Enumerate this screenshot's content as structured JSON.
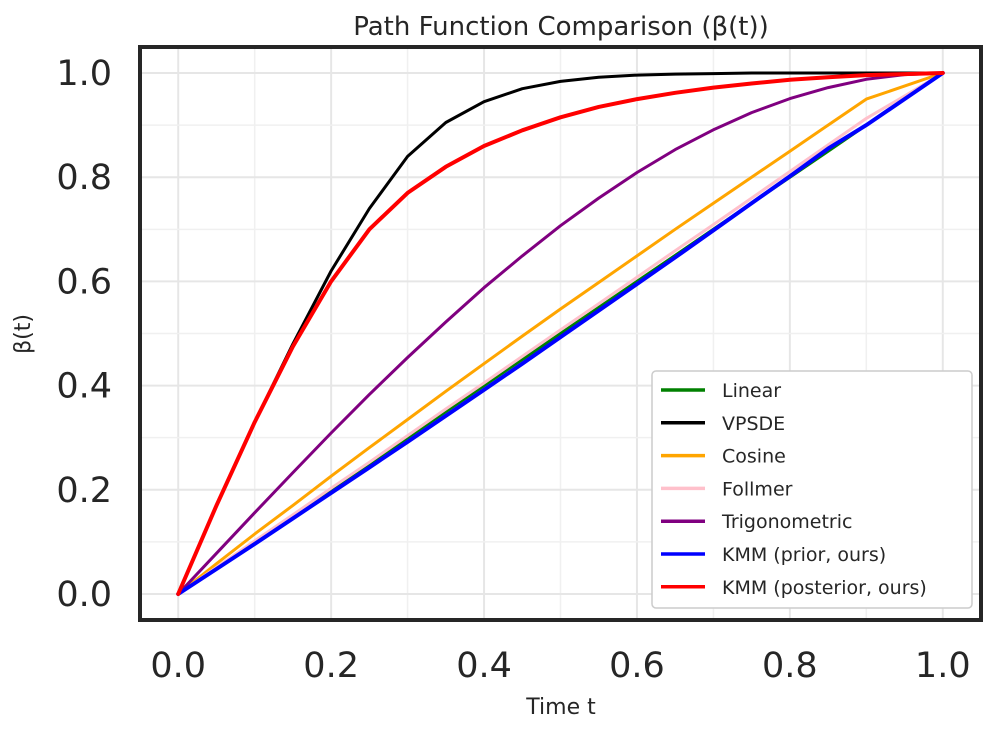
{
  "chart_data": {
    "type": "line",
    "title": "Path Function Comparison (β(t))",
    "xlabel": "Time t",
    "ylabel": "β(t)",
    "xlim": [
      -0.05,
      1.05
    ],
    "ylim": [
      -0.05,
      1.05
    ],
    "grid": true,
    "legend_position": "lower-right",
    "x_ticks": [
      0.0,
      0.2,
      0.4,
      0.6,
      0.8,
      1.0
    ],
    "x_tick_labels": [
      "0.0",
      "0.2",
      "0.4",
      "0.6",
      "0.8",
      "1.0"
    ],
    "y_ticks": [
      0.0,
      0.2,
      0.4,
      0.6,
      0.8,
      1.0
    ],
    "y_tick_labels": [
      "0.0",
      "0.2",
      "0.4",
      "0.6",
      "0.8",
      "1.0"
    ],
    "x": [
      0.0,
      0.05,
      0.1,
      0.15,
      0.2,
      0.25,
      0.3,
      0.35,
      0.4,
      0.45,
      0.5,
      0.55,
      0.6,
      0.65,
      0.7,
      0.75,
      0.8,
      0.85,
      0.9,
      0.95,
      1.0
    ],
    "series": [
      {
        "name": "Linear",
        "color": "#008000",
        "values": [
          0.0,
          0.05,
          0.1,
          0.15,
          0.2,
          0.25,
          0.3,
          0.35,
          0.4,
          0.45,
          0.5,
          0.55,
          0.6,
          0.65,
          0.7,
          0.75,
          0.8,
          0.85,
          0.9,
          0.95,
          1.0
        ]
      },
      {
        "name": "VPSDE",
        "color": "#000000",
        "values": [
          0.0,
          0.17,
          0.33,
          0.48,
          0.62,
          0.74,
          0.84,
          0.905,
          0.945,
          0.97,
          0.984,
          0.992,
          0.996,
          0.998,
          0.999,
          1.0,
          1.0,
          1.0,
          1.0,
          1.0,
          1.0
        ]
      },
      {
        "name": "Cosine",
        "color": "#FFA500",
        "values": [
          0.0,
          0.058,
          0.115,
          0.17,
          0.226,
          0.281,
          0.335,
          0.389,
          0.442,
          0.495,
          0.547,
          0.598,
          0.649,
          0.7,
          0.75,
          0.8,
          0.85,
          0.9,
          0.95,
          0.975,
          1.0
        ]
      },
      {
        "name": "Follmer",
        "color": "#FFC0CB",
        "values": [
          0.0,
          0.051,
          0.102,
          0.152,
          0.203,
          0.253,
          0.304,
          0.355,
          0.405,
          0.456,
          0.507,
          0.557,
          0.608,
          0.659,
          0.709,
          0.76,
          0.811,
          0.862,
          0.913,
          0.956,
          1.0
        ]
      },
      {
        "name": "Trigonometric",
        "color": "#800080",
        "values": [
          0.0,
          0.078,
          0.156,
          0.233,
          0.309,
          0.383,
          0.454,
          0.522,
          0.588,
          0.649,
          0.707,
          0.76,
          0.809,
          0.853,
          0.891,
          0.924,
          0.951,
          0.972,
          0.988,
          0.997,
          1.0
        ]
      },
      {
        "name": "KMM (prior, ours)",
        "color": "#0000FF",
        "values": [
          0.0,
          0.048,
          0.096,
          0.145,
          0.194,
          0.243,
          0.292,
          0.342,
          0.392,
          0.442,
          0.493,
          0.544,
          0.595,
          0.646,
          0.698,
          0.75,
          0.802,
          0.855,
          0.9,
          0.95,
          1.0
        ]
      },
      {
        "name": "KMM (posterior, ours)",
        "color": "#FF0000",
        "values": [
          0.0,
          0.17,
          0.33,
          0.475,
          0.6,
          0.7,
          0.77,
          0.82,
          0.86,
          0.89,
          0.915,
          0.935,
          0.95,
          0.962,
          0.972,
          0.98,
          0.987,
          0.992,
          0.996,
          0.998,
          1.0
        ]
      }
    ]
  }
}
